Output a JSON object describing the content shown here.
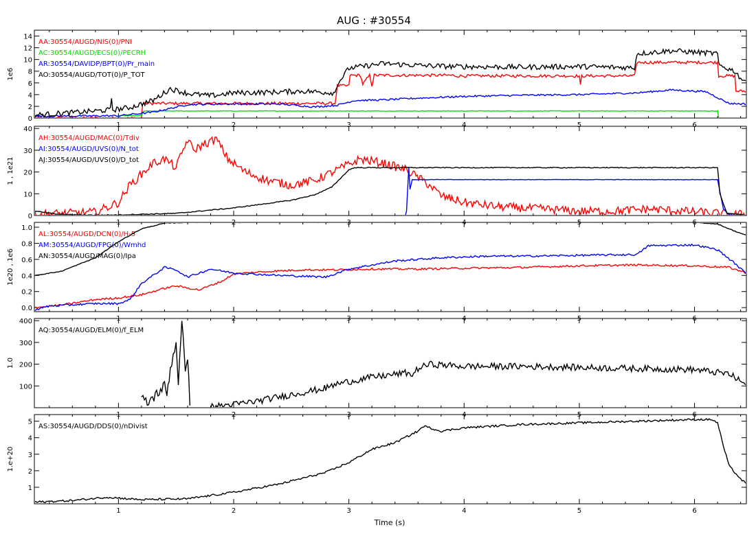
{
  "title": "AUG : #30554",
  "xlabel": "Time (s)",
  "colors": {
    "black": "#000000",
    "red": "#ff0000",
    "green": "#00dd00",
    "blue": "#0000ff",
    "frame": "#000000"
  },
  "chart_data": [
    {
      "type": "line",
      "ylabel": "1e6",
      "xlim": [
        0.27,
        6.45
      ],
      "ylim": [
        0,
        15
      ],
      "yticks": [
        0,
        2,
        4,
        6,
        8,
        10,
        12,
        14
      ],
      "xticks": [
        1,
        2,
        3,
        4,
        5,
        6
      ],
      "series": [
        {
          "name": "AA:30554/AUGD/NIS(0)/PNI",
          "color": "#ff0000",
          "noise": 0.25,
          "x": [
            0.27,
            1.2,
            1.21,
            2.88,
            2.9,
            3.0,
            3.01,
            3.1,
            3.12,
            3.18,
            3.2,
            3.22,
            3.3,
            3.31,
            3.9,
            3.91,
            5.0,
            5.01,
            5.02,
            5.03,
            5.48,
            5.5,
            6.2,
            6.21,
            6.35,
            6.36,
            6.45
          ],
          "y": [
            0,
            0,
            2.5,
            2.5,
            5.5,
            5.5,
            7.3,
            7.3,
            5.8,
            7.3,
            5.6,
            7.3,
            7.3,
            7.3,
            7.3,
            7.2,
            7.2,
            5.5,
            7.2,
            7.2,
            7.2,
            9.5,
            9.5,
            7.2,
            7.2,
            4.6,
            4.6
          ]
        },
        {
          "name": "AC:30554/AUGD/ECS(0)/PECRH",
          "color": "#00dd00",
          "noise": 0.05,
          "x": [
            0.27,
            1.0,
            1.01,
            1.2,
            1.22,
            1.3,
            1.31,
            6.2,
            6.21,
            6.45
          ],
          "y": [
            0,
            0,
            0.4,
            0.4,
            1.2,
            1.2,
            1.2,
            1.2,
            0,
            0
          ]
        },
        {
          "name": "AR:30554/DAVIDP/BPT(0)/Pr_main",
          "color": "#0000ff",
          "noise": 0.15,
          "x": [
            0.27,
            1.0,
            1.3,
            1.6,
            1.9,
            2.4,
            2.7,
            2.9,
            3.05,
            3.3,
            3.6,
            4.0,
            4.5,
            5.0,
            5.5,
            5.8,
            6.1,
            6.3,
            6.45
          ],
          "y": [
            0.3,
            0.4,
            1.0,
            2.3,
            2.4,
            2.4,
            1.9,
            2.2,
            3.0,
            3.1,
            3.4,
            3.7,
            3.9,
            4.0,
            4.3,
            4.8,
            4.5,
            2.5,
            2.4
          ]
        },
        {
          "name": "AO:30554/AUGD/TOT(0)/P_TOT",
          "color": "#000000",
          "noise": 0.45,
          "x": [
            0.27,
            0.8,
            0.93,
            0.94,
            0.95,
            1.1,
            1.3,
            1.45,
            1.6,
            1.8,
            2.0,
            2.3,
            2.6,
            2.88,
            2.9,
            3.0,
            3.3,
            3.6,
            3.9,
            4.5,
            5.0,
            5.48,
            5.5,
            5.8,
            6.2,
            6.21,
            6.35,
            6.4,
            6.45
          ],
          "y": [
            0.5,
            1.2,
            1.4,
            3.5,
            1.4,
            1.8,
            3.0,
            5.0,
            4.2,
            3.8,
            4.3,
            4.4,
            4.6,
            4.3,
            5.8,
            8.5,
            9.3,
            9.0,
            8.8,
            8.7,
            8.8,
            8.6,
            11.0,
            11.5,
            11.0,
            9.0,
            8.0,
            6.8,
            6.3
          ]
        }
      ]
    },
    {
      "type": "line",
      "ylabel": "1 , 1e21",
      "xlim": [
        0.27,
        6.45
      ],
      "ylim": [
        0,
        41
      ],
      "yticks": [
        0,
        10,
        20,
        30,
        40
      ],
      "xticks": [
        1,
        2,
        3,
        4,
        5,
        6
      ],
      "series": [
        {
          "name": "AH:30554/AUGD/MAC(0)/Tdiv",
          "color": "#ff0000",
          "noise": 2.0,
          "x": [
            0.27,
            0.8,
            1.0,
            1.1,
            1.2,
            1.3,
            1.4,
            1.5,
            1.6,
            1.65,
            1.75,
            1.85,
            1.95,
            2.1,
            2.3,
            2.5,
            2.7,
            2.9,
            3.1,
            3.3,
            3.5,
            3.7,
            3.8,
            4.0,
            4.3,
            4.7,
            5.0,
            5.3,
            5.6,
            5.9,
            6.2,
            6.3,
            6.45
          ],
          "y": [
            0.5,
            1.5,
            6.0,
            14.0,
            19.0,
            24.0,
            26.0,
            22.0,
            35.0,
            30.0,
            33.0,
            35.0,
            26.0,
            20.0,
            16.0,
            14.0,
            16.0,
            21.0,
            26.0,
            24.0,
            21.0,
            14.0,
            9.0,
            6.0,
            4.0,
            3.0,
            2.0,
            2.0,
            3.0,
            2.0,
            1.0,
            0.5,
            0.5
          ]
        },
        {
          "name": "AI:30554/AUGD/UVS(0)/N_tot",
          "color": "#0000ff",
          "noise": 0.1,
          "x": [
            0.27,
            3.49,
            3.5,
            3.52,
            3.53,
            3.55,
            3.6,
            3.7,
            6.2,
            6.25,
            6.3,
            6.45
          ],
          "y": [
            0,
            0,
            2.0,
            22.0,
            12.0,
            16.5,
            16.5,
            16.5,
            16.5,
            3.0,
            0.3,
            0
          ]
        },
        {
          "name": "AJ:30554/AUGD/UVS(0)/D_tot",
          "color": "#000000",
          "noise": 0.2,
          "x": [
            0.27,
            0.5,
            0.8,
            1.0,
            1.5,
            2.0,
            2.5,
            2.7,
            2.85,
            3.0,
            3.05,
            3.5,
            4.0,
            5.0,
            6.2,
            6.22,
            6.28,
            6.45
          ],
          "y": [
            2.0,
            0.5,
            0.2,
            0.3,
            1.0,
            3.5,
            7.0,
            9.5,
            13.0,
            21.0,
            22.0,
            22.0,
            22.0,
            22.0,
            22.0,
            10.0,
            1.0,
            0.2
          ]
        }
      ]
    },
    {
      "type": "line",
      "ylabel": "1e20 , 1e6",
      "xlim": [
        0.27,
        6.45
      ],
      "ylim": [
        -0.05,
        1.06
      ],
      "yticks": [
        0.0,
        0.2,
        0.4,
        0.6,
        0.8,
        1.0
      ],
      "xticks": [
        1,
        2,
        3,
        4,
        5,
        6
      ],
      "series": [
        {
          "name": "AL:30554/AUGD/DCN(0)/H-5",
          "color": "#ff0000",
          "noise": 0.012,
          "x": [
            0.27,
            0.5,
            0.8,
            1.0,
            1.2,
            1.4,
            1.5,
            1.7,
            1.9,
            2.0,
            2.3,
            2.6,
            2.9,
            3.2,
            3.6,
            4.0,
            4.5,
            5.0,
            5.5,
            6.0,
            6.3,
            6.45
          ],
          "y": [
            0.0,
            0.03,
            0.1,
            0.12,
            0.16,
            0.24,
            0.27,
            0.22,
            0.33,
            0.42,
            0.45,
            0.47,
            0.47,
            0.48,
            0.48,
            0.49,
            0.5,
            0.52,
            0.53,
            0.52,
            0.5,
            0.43
          ]
        },
        {
          "name": "AM:30554/AUGD/FPG(0)/Wmhd",
          "color": "#0000ff",
          "noise": 0.012,
          "x": [
            0.27,
            0.4,
            0.8,
            1.0,
            1.1,
            1.2,
            1.4,
            1.5,
            1.6,
            1.8,
            2.0,
            2.4,
            2.8,
            3.0,
            3.4,
            3.8,
            4.2,
            4.5,
            5.0,
            5.5,
            5.6,
            6.0,
            6.2,
            6.35,
            6.45
          ],
          "y": [
            -0.03,
            0.02,
            0.05,
            0.05,
            0.1,
            0.3,
            0.5,
            0.47,
            0.38,
            0.48,
            0.43,
            0.4,
            0.38,
            0.48,
            0.58,
            0.62,
            0.64,
            0.64,
            0.65,
            0.66,
            0.77,
            0.78,
            0.72,
            0.55,
            0.42
          ]
        },
        {
          "name": "AN:30554/AUGD/MAG(0)/Ipa",
          "color": "#000000",
          "noise": 0.004,
          "x": [
            0.27,
            0.5,
            0.8,
            1.0,
            1.2,
            1.4,
            1.6,
            2.0,
            3.0,
            4.0,
            5.0,
            6.0,
            6.2,
            6.35,
            6.45
          ],
          "y": [
            0.4,
            0.45,
            0.62,
            0.82,
            0.98,
            1.05,
            1.06,
            1.06,
            1.06,
            1.06,
            1.06,
            1.06,
            1.04,
            0.95,
            0.9
          ]
        }
      ]
    },
    {
      "type": "line",
      "ylabel": "1.0",
      "xlim": [
        0.27,
        6.45
      ],
      "ylim": [
        0,
        410
      ],
      "yticks": [
        100,
        200,
        300,
        400
      ],
      "xticks": [
        1,
        2,
        3,
        4,
        5,
        6
      ],
      "series": [
        {
          "name": "AQ:30554/AUGD/ELM(0)/f_ELM",
          "color": "#000000",
          "noise": 25,
          "x": [
            1.2,
            1.25,
            1.4,
            1.42,
            1.45,
            1.5,
            1.52,
            1.55,
            1.58,
            1.6,
            1.62
          ],
          "y": [
            40,
            20,
            100,
            60,
            180,
            300,
            120,
            380,
            190,
            240,
            10
          ]
        },
        {
          "name": "AQ:30554/AUGD/ELM(0)/f_ELM",
          "color": "#000000",
          "noise": 15,
          "x": [
            1.8,
            2.0,
            2.2,
            2.4,
            2.6,
            2.8,
            2.9,
            3.2,
            3.5,
            3.55,
            3.6,
            3.7,
            4.0,
            4.5,
            5.0,
            5.5,
            6.0,
            6.3,
            6.45
          ],
          "y": [
            5,
            15,
            30,
            50,
            70,
            90,
            110,
            140,
            160,
            150,
            180,
            200,
            190,
            190,
            185,
            180,
            175,
            155,
            105
          ]
        }
      ]
    },
    {
      "type": "line",
      "ylabel": "1.e+20",
      "xlim": [
        0.27,
        6.45
      ],
      "ylim": [
        0,
        5.4
      ],
      "yticks": [
        1,
        2,
        3,
        4,
        5
      ],
      "xticks": [
        1,
        2,
        3,
        4,
        5,
        6
      ],
      "series": [
        {
          "name": "AS:30554/AUGD/DDS(0)/nDivist",
          "color": "#000000",
          "noise": 0.06,
          "x": [
            0.27,
            0.6,
            0.9,
            1.2,
            1.6,
            2.0,
            2.4,
            2.8,
            3.0,
            3.2,
            3.4,
            3.6,
            3.65,
            3.8,
            4.0,
            4.5,
            5.0,
            5.5,
            6.0,
            6.15,
            6.2,
            6.25,
            6.3,
            6.4,
            6.45
          ],
          "y": [
            0.1,
            0.2,
            0.4,
            0.25,
            0.3,
            0.7,
            1.2,
            1.9,
            2.5,
            3.3,
            3.7,
            4.4,
            4.7,
            4.4,
            4.6,
            4.8,
            4.9,
            5.0,
            5.1,
            5.1,
            4.9,
            3.5,
            2.3,
            1.5,
            1.2
          ]
        }
      ]
    }
  ]
}
